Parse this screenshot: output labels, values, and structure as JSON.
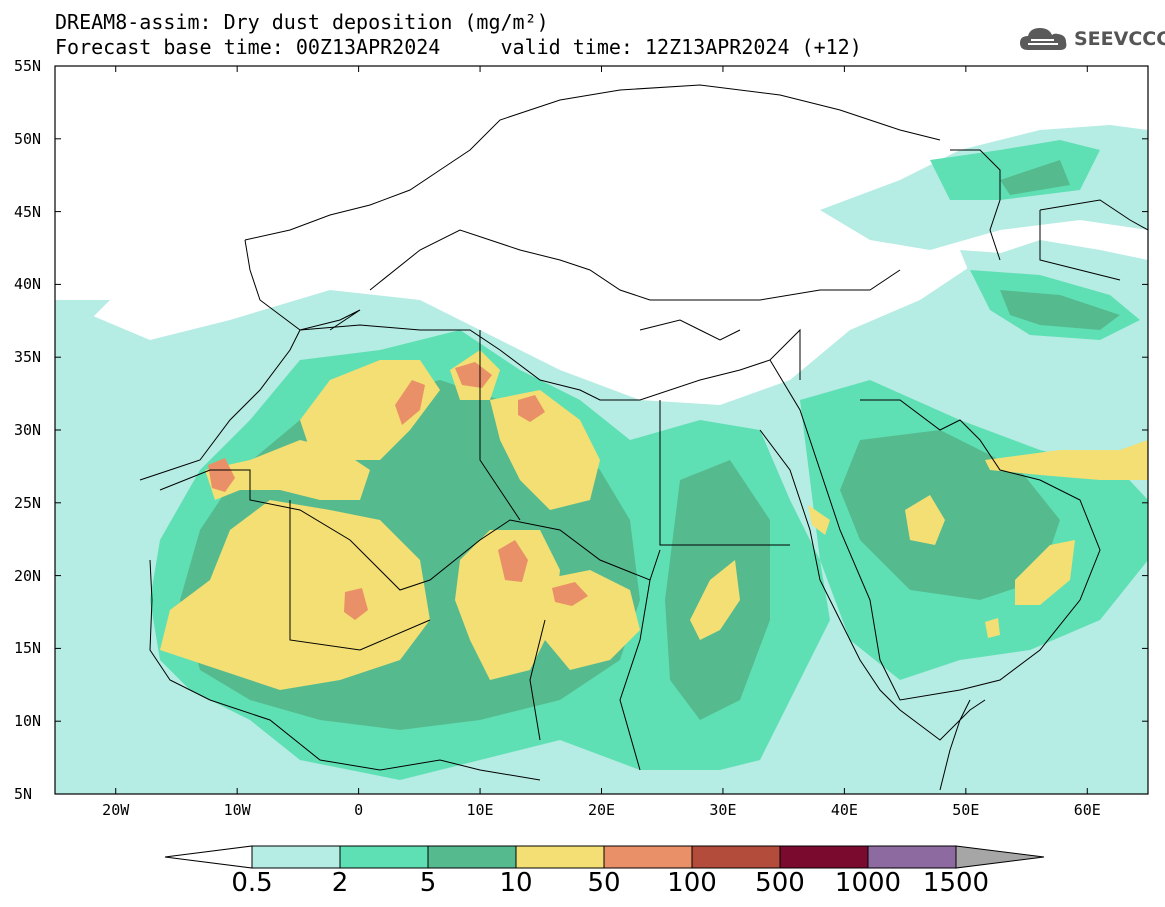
{
  "title": {
    "line1": "DREAM8-assim: Dry dust deposition (mg/m²)",
    "line2": "Forecast base time: 00Z13APR2024     valid time: 12Z13APR2024 (+12)"
  },
  "logo": {
    "text": "SEEVCCC",
    "icon": "cloud-icon"
  },
  "map": {
    "lon_range": [
      -25,
      65
    ],
    "lat_range": [
      5,
      55
    ],
    "lat_ticks": [
      {
        "value": 55,
        "label": "55N"
      },
      {
        "value": 50,
        "label": "50N"
      },
      {
        "value": 45,
        "label": "45N"
      },
      {
        "value": 40,
        "label": "40N"
      },
      {
        "value": 35,
        "label": "35N"
      },
      {
        "value": 30,
        "label": "30N"
      },
      {
        "value": 25,
        "label": "25N"
      },
      {
        "value": 20,
        "label": "20N"
      },
      {
        "value": 15,
        "label": "15N"
      },
      {
        "value": 10,
        "label": "10N"
      },
      {
        "value": 5,
        "label": "5N"
      }
    ],
    "lon_ticks": [
      {
        "value": -20,
        "label": "20W"
      },
      {
        "value": -10,
        "label": "10W"
      },
      {
        "value": 0,
        "label": "0"
      },
      {
        "value": 10,
        "label": "10E"
      },
      {
        "value": 20,
        "label": "20E"
      },
      {
        "value": 30,
        "label": "30E"
      },
      {
        "value": 40,
        "label": "40E"
      },
      {
        "value": 50,
        "label": "50E"
      },
      {
        "value": 60,
        "label": "60E"
      }
    ]
  },
  "colorbar": {
    "colors": [
      "#b5ece3",
      "#5fe0b4",
      "#55bb8f",
      "#f3df73",
      "#ea9068",
      "#b44c3c",
      "#7a0b2f",
      "#8d6aa0",
      "#a6a6a6"
    ],
    "labels": [
      "0.5",
      "2",
      "5",
      "10",
      "50",
      "100",
      "500",
      "1000",
      "1500"
    ]
  }
}
